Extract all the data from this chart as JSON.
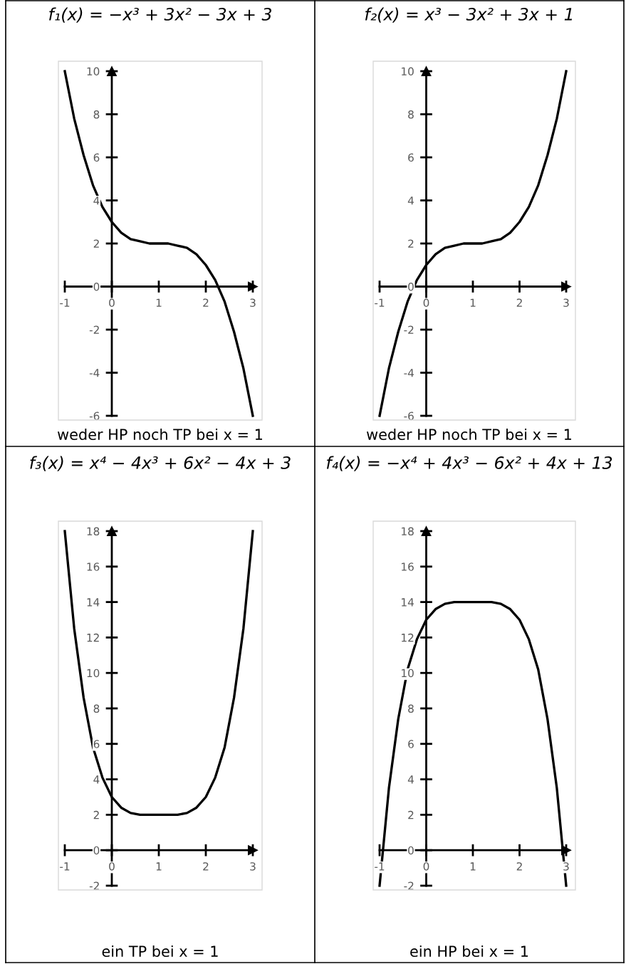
{
  "chart_data": [
    {
      "type": "line",
      "title": "f₁(x) = −x³ + 3x² − 3x + 3",
      "annotations": [
        "weder HP noch TP bei x = 1"
      ],
      "x": [
        -1,
        -0.8,
        -0.6,
        -0.4,
        -0.2,
        0,
        0.2,
        0.4,
        0.6,
        0.8,
        1,
        1.2,
        1.4,
        1.6,
        1.8,
        2,
        2.2,
        2.4,
        2.6,
        2.8,
        3
      ],
      "series": [
        {
          "color": "#000000",
          "values": [
            10,
            7.8,
            6.1,
            4.7,
            3.7,
            3,
            2.5,
            2.2,
            2.1,
            2,
            2,
            2,
            1.9,
            1.8,
            1.5,
            1,
            0.3,
            -0.7,
            -2.1,
            -3.8,
            -6
          ]
        }
      ],
      "xlim": [
        -1,
        3
      ],
      "ylim": [
        -6,
        10
      ],
      "xticks": [
        -1,
        0,
        1,
        2,
        3
      ],
      "yticks": [
        -6,
        -4,
        -2,
        0,
        2,
        4,
        6,
        8,
        10
      ],
      "grid": false,
      "legend": false,
      "marker": "none",
      "line_style": "solid"
    },
    {
      "type": "line",
      "title": "f₂(x) = x³ − 3x² + 3x + 1",
      "annotations": [
        "weder HP noch TP bei x = 1"
      ],
      "x": [
        -1,
        -0.8,
        -0.6,
        -0.4,
        -0.2,
        0,
        0.2,
        0.4,
        0.6,
        0.8,
        1,
        1.2,
        1.4,
        1.6,
        1.8,
        2,
        2.2,
        2.4,
        2.6,
        2.8,
        3
      ],
      "series": [
        {
          "color": "#000000",
          "values": [
            -6,
            -3.8,
            -2.1,
            -0.7,
            0.3,
            1,
            1.5,
            1.8,
            1.9,
            2,
            2,
            2,
            2.1,
            2.2,
            2.5,
            3,
            3.7,
            4.7,
            6.1,
            7.8,
            10
          ]
        }
      ],
      "xlim": [
        -1,
        3
      ],
      "ylim": [
        -6,
        10
      ],
      "xticks": [
        -1,
        0,
        1,
        2,
        3
      ],
      "yticks": [
        -6,
        -4,
        -2,
        0,
        2,
        4,
        6,
        8,
        10
      ],
      "grid": false,
      "legend": false,
      "marker": "none",
      "line_style": "solid"
    },
    {
      "type": "line",
      "title": "f₃(x) = x⁴ − 4x³ + 6x² − 4x + 3",
      "annotations": [
        "ein TP bei x = 1"
      ],
      "x": [
        -1,
        -0.8,
        -0.6,
        -0.4,
        -0.2,
        0,
        0.2,
        0.4,
        0.6,
        0.8,
        1,
        1.2,
        1.4,
        1.6,
        1.8,
        2,
        2.2,
        2.4,
        2.6,
        2.8,
        3
      ],
      "series": [
        {
          "color": "#000000",
          "values": [
            18,
            12.5,
            8.6,
            5.8,
            4.1,
            3,
            2.4,
            2.1,
            2,
            2,
            2,
            2,
            2,
            2.1,
            2.4,
            3,
            4.1,
            5.8,
            8.6,
            12.5,
            18
          ]
        }
      ],
      "xlim": [
        -1,
        3
      ],
      "ylim": [
        -2,
        18
      ],
      "xticks": [
        -1,
        0,
        1,
        2,
        3
      ],
      "yticks": [
        -2,
        0,
        2,
        4,
        6,
        8,
        10,
        12,
        14,
        16,
        18
      ],
      "grid": false,
      "legend": false,
      "marker": "none",
      "line_style": "solid"
    },
    {
      "type": "line",
      "title": "f₄(x) = −x⁴ + 4x³ − 6x² + 4x + 13",
      "annotations": [
        "ein HP bei x = 1"
      ],
      "x": [
        -1,
        -0.8,
        -0.6,
        -0.4,
        -0.2,
        0,
        0.2,
        0.4,
        0.6,
        0.8,
        1,
        1.2,
        1.4,
        1.6,
        1.8,
        2,
        2.2,
        2.4,
        2.6,
        2.8,
        3
      ],
      "series": [
        {
          "color": "#000000",
          "values": [
            -2,
            3.5,
            7.4,
            10.2,
            11.9,
            13,
            13.6,
            13.9,
            14,
            14,
            14,
            14,
            14,
            13.9,
            13.6,
            13,
            11.9,
            10.2,
            7.4,
            3.5,
            -2
          ]
        }
      ],
      "xlim": [
        -1,
        3
      ],
      "ylim": [
        -2,
        18
      ],
      "xticks": [
        -1,
        0,
        1,
        2,
        3
      ],
      "yticks": [
        -2,
        0,
        2,
        4,
        6,
        8,
        10,
        12,
        14,
        16,
        18
      ],
      "grid": false,
      "legend": false,
      "marker": "none",
      "line_style": "solid"
    }
  ]
}
